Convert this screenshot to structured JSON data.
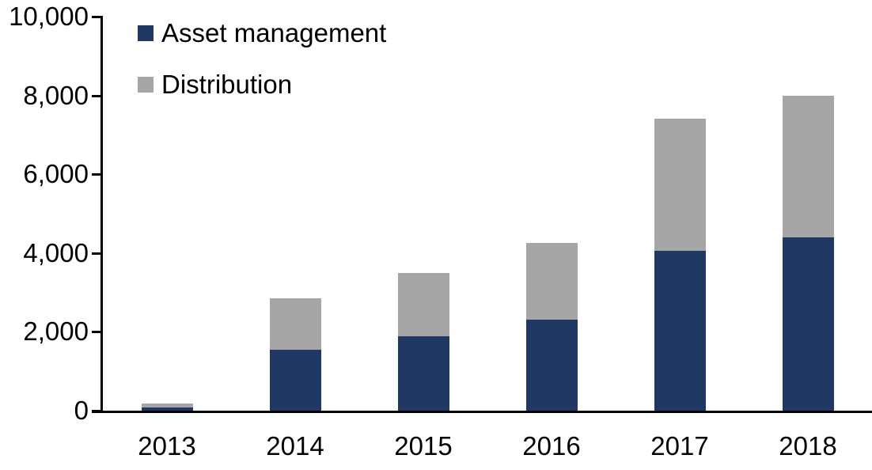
{
  "chart_data": {
    "type": "bar",
    "stacked": true,
    "title": "",
    "categories": [
      "2013",
      "2014",
      "2015",
      "2016",
      "2017",
      "2018"
    ],
    "series": [
      {
        "name": "Asset management",
        "color": "#1F3864",
        "values": [
          90,
          1550,
          1900,
          2300,
          4050,
          4400
        ]
      },
      {
        "name": "Distribution",
        "color": "#A6A6A6",
        "values": [
          100,
          1300,
          1600,
          1950,
          3350,
          3600
        ]
      }
    ],
    "totals": [
      190,
      2850,
      3500,
      4250,
      7400,
      8000
    ],
    "xlabel": "",
    "ylabel": "",
    "ylim": [
      0,
      10000
    ],
    "yticks": [
      0,
      2000,
      4000,
      6000,
      8000,
      10000
    ],
    "ytick_labels": [
      "0",
      "2,000",
      "4,000",
      "6,000",
      "8,000",
      "10,000"
    ],
    "grid": false,
    "legend_position": "top-left",
    "axis_color": "#000000",
    "background": "#FFFFFF"
  }
}
